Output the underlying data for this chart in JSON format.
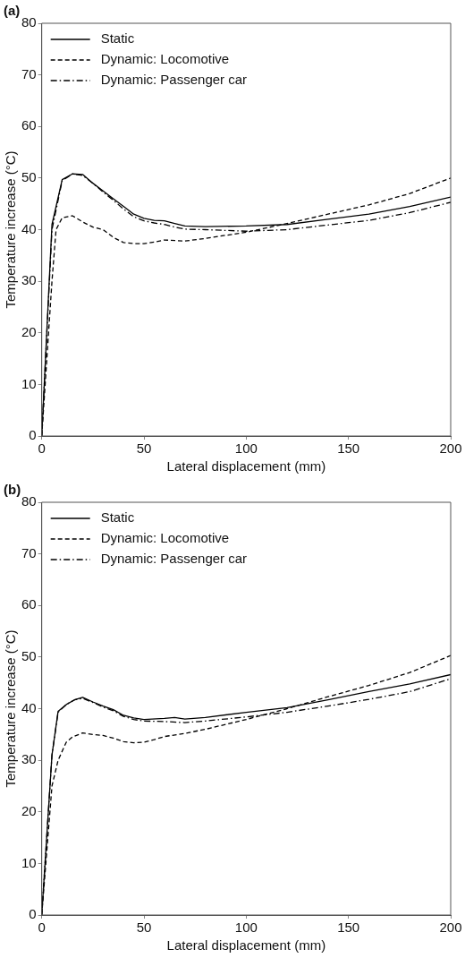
{
  "chart_data": [
    {
      "type": "line",
      "title": "(a)",
      "xlabel": "Lateral displacement (mm)",
      "ylabel": "Temperature increase (°C)",
      "xlim": [
        0,
        200
      ],
      "xticks": [
        0,
        50,
        100,
        150,
        200
      ],
      "ylim": [
        0,
        80
      ],
      "yticks": [
        0,
        10,
        20,
        30,
        40,
        50,
        60,
        70,
        80
      ],
      "grid": false,
      "legend": "top left",
      "marker": "none",
      "series": [
        {
          "name": "Static",
          "color": "#000000",
          "line_style": "solid",
          "x": [
            0,
            5,
            10,
            15,
            20,
            25,
            30,
            35,
            40,
            45,
            50,
            55,
            60,
            65,
            70,
            80,
            100,
            120,
            140,
            160,
            180,
            200
          ],
          "values": [
            0,
            41,
            49.7,
            50.8,
            50.7,
            49,
            47.5,
            46,
            44.5,
            43,
            42.2,
            41.8,
            41.7,
            41.2,
            40.7,
            40.6,
            40.7,
            41,
            42,
            43,
            44.5,
            46.3
          ]
        },
        {
          "name": "Dynamic: Locomotive",
          "color": "#000000",
          "line_style": "dashed",
          "x": [
            0,
            5,
            7,
            10,
            15,
            20,
            25,
            30,
            35,
            40,
            45,
            50,
            55,
            60,
            70,
            80,
            100,
            120,
            140,
            160,
            180,
            200
          ],
          "values": [
            0,
            30,
            40,
            42.3,
            42.7,
            41.5,
            40.5,
            40,
            38.5,
            37.5,
            37.3,
            37.3,
            37.6,
            38,
            37.8,
            38.3,
            39.5,
            41.2,
            43,
            44.8,
            47,
            50
          ]
        },
        {
          "name": "Dynamic: Passenger car",
          "color": "#000000",
          "line_style": "dashdot",
          "x": [
            0,
            5,
            10,
            15,
            20,
            25,
            30,
            35,
            40,
            45,
            50,
            55,
            60,
            65,
            70,
            80,
            100,
            120,
            140,
            160,
            180,
            200
          ],
          "values": [
            0,
            40,
            49.5,
            50.8,
            50.5,
            49,
            47.3,
            45.7,
            44,
            42.5,
            41.7,
            41.3,
            41,
            40.5,
            40.1,
            40,
            39.7,
            40,
            40.9,
            41.8,
            43.3,
            45.3
          ]
        }
      ]
    },
    {
      "type": "line",
      "title": "(b)",
      "xlabel": "Lateral displacement (mm)",
      "ylabel": "Temperature increase (°C)",
      "xlim": [
        0,
        200
      ],
      "xticks": [
        0,
        50,
        100,
        150,
        200
      ],
      "ylim": [
        0,
        80
      ],
      "yticks": [
        0,
        10,
        20,
        30,
        40,
        50,
        60,
        70,
        80
      ],
      "grid": false,
      "legend": "top left",
      "marker": "none",
      "series": [
        {
          "name": "Static",
          "color": "#000000",
          "line_style": "solid",
          "x": [
            0,
            5,
            8,
            12,
            16,
            20,
            25,
            30,
            35,
            40,
            45,
            50,
            60,
            65,
            70,
            80,
            100,
            120,
            140,
            160,
            180,
            200
          ],
          "values": [
            0,
            31,
            39.5,
            40.8,
            41.7,
            42.2,
            41.3,
            40.5,
            39.8,
            38.7,
            38.2,
            37.9,
            38.1,
            38.3,
            38,
            38.3,
            39.3,
            40.2,
            41.7,
            43.3,
            44.8,
            46.6
          ]
        },
        {
          "name": "Dynamic: Locomotive",
          "color": "#000000",
          "line_style": "dashed",
          "x": [
            0,
            5,
            8,
            12,
            15,
            20,
            25,
            30,
            35,
            40,
            45,
            50,
            55,
            60,
            70,
            80,
            100,
            120,
            140,
            160,
            180,
            200
          ],
          "values": [
            0,
            25,
            30,
            33.5,
            34.5,
            35.3,
            35,
            34.8,
            34.3,
            33.6,
            33.4,
            33.5,
            34,
            34.6,
            35.2,
            36,
            37.9,
            40,
            42.3,
            44.5,
            47,
            50.3
          ]
        },
        {
          "name": "Dynamic: Passenger car",
          "color": "#000000",
          "line_style": "dashdot",
          "x": [
            0,
            5,
            8,
            12,
            16,
            20,
            25,
            30,
            35,
            40,
            45,
            50,
            60,
            70,
            80,
            100,
            120,
            140,
            160,
            180,
            200
          ],
          "values": [
            0,
            31,
            39.3,
            40.8,
            41.7,
            42,
            41.2,
            40.3,
            39.6,
            38.5,
            37.9,
            37.6,
            37.5,
            37.3,
            37.6,
            38.4,
            39.3,
            40.5,
            41.8,
            43.3,
            45.8
          ]
        }
      ]
    }
  ]
}
